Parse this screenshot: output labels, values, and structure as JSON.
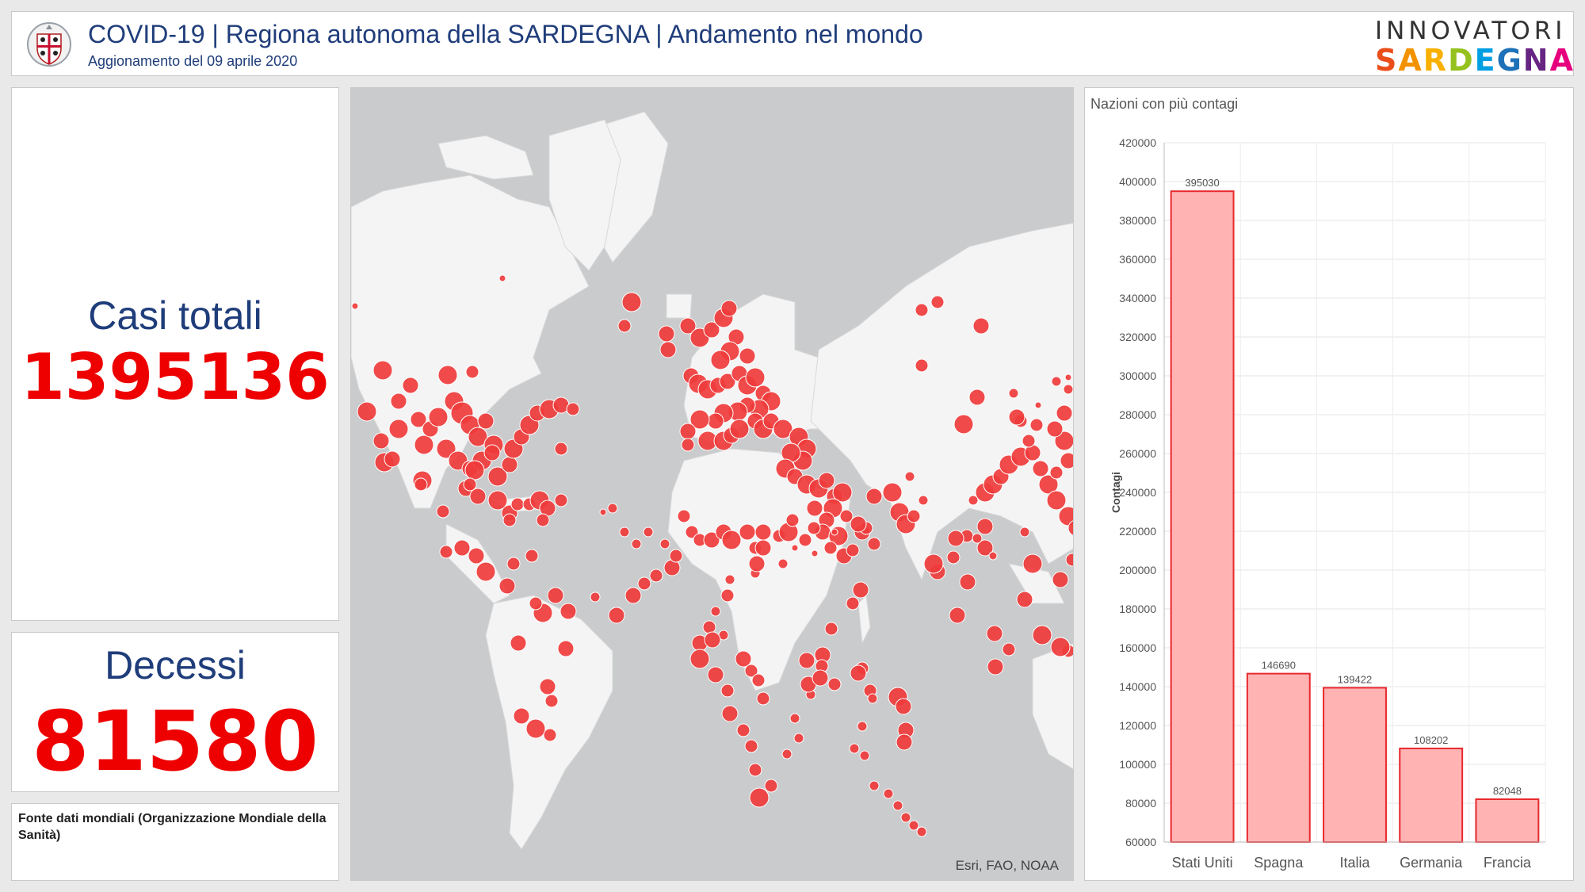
{
  "header": {
    "title": "COVID-19 | Regiona autonoma della SARDEGNA | Andamento nel mondo",
    "update": "Aggionamento del 09 aprile 2020",
    "crest_icon": "sardinia-crest-icon",
    "brand_top": "INNOVATORI",
    "brand_bottom": "SARDEGNA",
    "brand_colors": [
      "#e94e1b",
      "#f39200",
      "#f9b000",
      "#95c11f",
      "#009ee3",
      "#1d71b8",
      "#662483",
      "#e6007e"
    ]
  },
  "indicators": {
    "total_cases_label": "Casi totali",
    "total_cases_value": "1395136",
    "deaths_label": "Decessi",
    "deaths_value": "81580",
    "value_color": "#ee0000",
    "label_color": "#1f3d7a"
  },
  "source": {
    "text": "Fonte dati mondiali (Organizzazione Mondiale della Sanità)"
  },
  "map": {
    "credit": "Esri, FAO, NOAA",
    "marker_color": "#ef3b3b",
    "land_color": "#f4f4f4",
    "water_color": "#c9cbcd"
  },
  "chart_data": {
    "type": "bar",
    "title": "Nazioni con più contagi",
    "ylabel": "Contagi",
    "xlabel": "",
    "categories": [
      "Stati Uniti",
      "Spagna",
      "Italia",
      "Germania",
      "Francia"
    ],
    "values": [
      395030,
      146690,
      139422,
      108202,
      82048
    ],
    "ylim": [
      60000,
      420000
    ],
    "ytick_step": 20000,
    "grid": true,
    "bar_fill": "#ffb3b3",
    "bar_stroke": "#e8282d"
  }
}
